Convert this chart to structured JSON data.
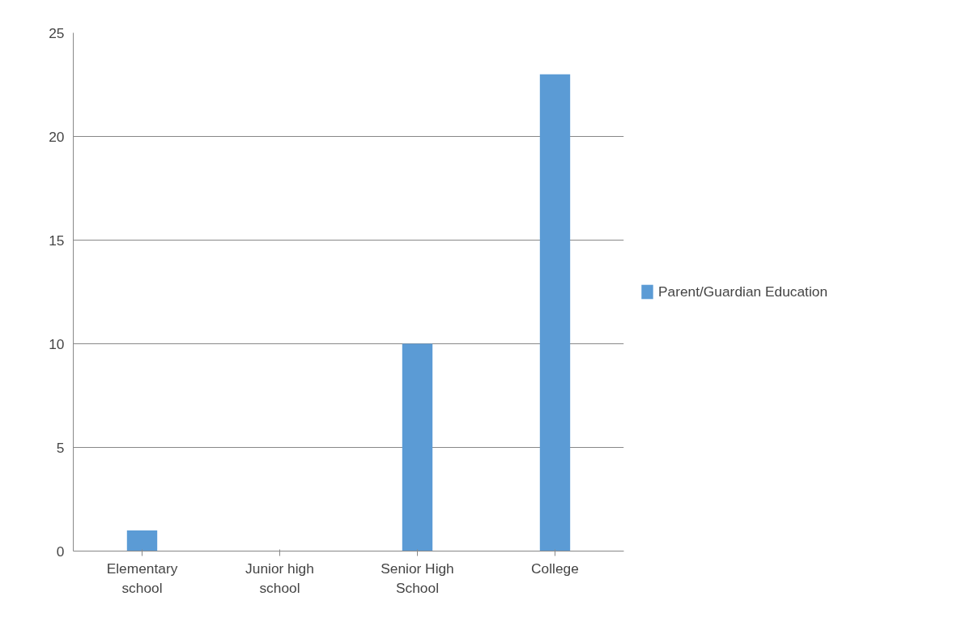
{
  "chart_data": {
    "type": "bar",
    "categories": [
      "Elementary school",
      "Junior high school",
      "Senior High School",
      "College"
    ],
    "series": [
      {
        "name": "Parent/Guardian Education",
        "color": "#5b9bd5",
        "values": [
          1,
          0,
          10,
          23
        ]
      }
    ],
    "ylim": [
      0,
      25
    ],
    "yticks": [
      0,
      5,
      10,
      15,
      20,
      25
    ],
    "grid": "y",
    "legend": "right"
  }
}
